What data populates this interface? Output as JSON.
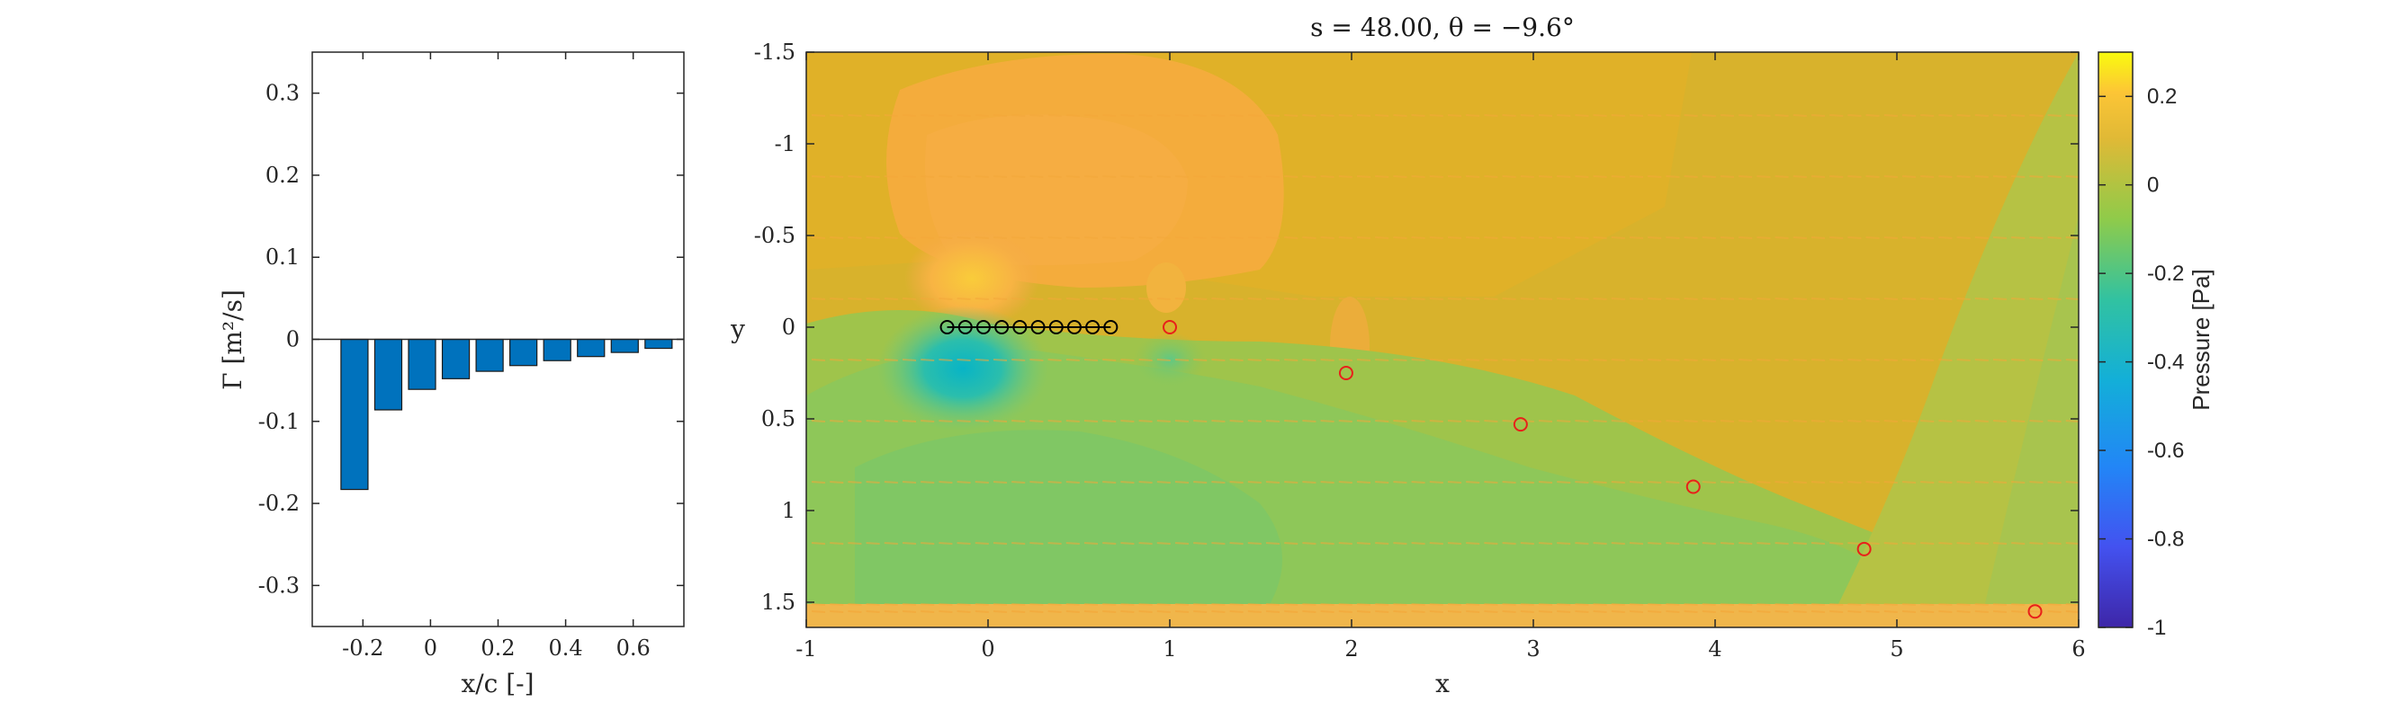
{
  "chart_data": [
    {
      "type": "bar",
      "xlabel": "x/c [-]",
      "ylabel": "Γ [m²/s]",
      "xlim": [
        -0.35,
        0.75
      ],
      "ylim": [
        -0.35,
        0.35
      ],
      "xticks": [
        "-0.2",
        "0",
        "0.2",
        "0.4",
        "0.6"
      ],
      "yticks": [
        "-0.3",
        "-0.2",
        "-0.1",
        "0",
        "0.1",
        "0.2",
        "0.3"
      ],
      "x": [
        -0.225,
        -0.125,
        -0.025,
        0.075,
        0.175,
        0.275,
        0.375,
        0.475,
        0.575,
        0.675
      ],
      "values": [
        -0.183,
        -0.086,
        -0.061,
        -0.048,
        -0.039,
        -0.032,
        -0.026,
        -0.021,
        -0.016,
        -0.011
      ],
      "bar_color": "#0072BD"
    },
    {
      "type": "heatmap",
      "title": "s = 48.00, θ = −9.6°",
      "xlabel": "x",
      "ylabel": "y",
      "xlim": [
        -1,
        6
      ],
      "ylim": [
        -1.5,
        1.6
      ],
      "y_reversed": true,
      "xticks": [
        "-1",
        "0",
        "1",
        "2",
        "3",
        "4",
        "5",
        "6"
      ],
      "yticks": [
        "-1.5",
        "-1",
        "-0.5",
        "0",
        "0.5",
        "1",
        "1.5"
      ],
      "colorbar": {
        "label": "Pressure [Pa]",
        "range": [
          -1,
          0.3
        ],
        "ticks": [
          "0.2",
          "0",
          "-0.2",
          "-0.4",
          "-0.6",
          "-0.8",
          "-1"
        ],
        "colormap": "parula"
      },
      "bound_vortices": {
        "x": [
          -0.225,
          -0.125,
          -0.025,
          0.075,
          0.175,
          0.275,
          0.375,
          0.475,
          0.575,
          0.675
        ],
        "y": [
          0,
          0,
          0,
          0,
          0,
          0,
          0,
          0,
          0,
          0
        ],
        "color": "#000000"
      },
      "wake_vortices": {
        "x": [
          1.0,
          1.97,
          2.93,
          3.88,
          4.82,
          5.76
        ],
        "y": [
          0.0,
          0.25,
          0.53,
          0.87,
          1.21,
          1.55
        ],
        "color": "#e8201a"
      }
    }
  ]
}
